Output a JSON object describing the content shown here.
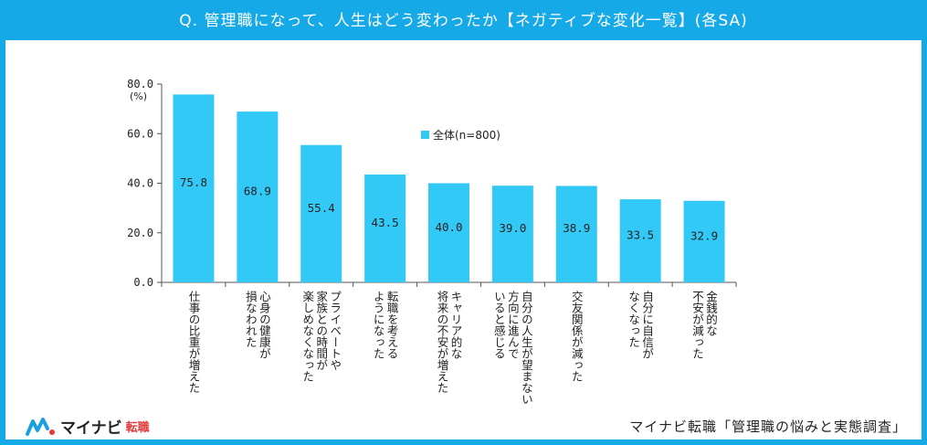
{
  "header": {
    "title": "Q. 管理職になって、人生はどう変わったか【ネガティブな変化一覧】(各SA)"
  },
  "brand": {
    "name": "マイナビ",
    "sub": "転職"
  },
  "source": "マイナビ転職「管理職の悩みと実態調査」",
  "colors": {
    "bar": "#33c9f7",
    "header": "#16a9e8",
    "axis": "#555555"
  },
  "chart_data": {
    "type": "bar",
    "unit_label": "(%)",
    "ylim": [
      0,
      80
    ],
    "yticks": [
      "0.0",
      "20.0",
      "40.0",
      "60.0",
      "80.0"
    ],
    "legend": {
      "label": "全体(n=800)",
      "placement": "top-center"
    },
    "categories": [
      "仕事の比重が増えた",
      "心身の健康が\n損なわれた",
      "プライベートや\n家族との時間が\n楽しめなくなった",
      "転職を考える\nようになった",
      "キャリア的な\n将来の不安が増えた",
      "自分の人生が望まない\n方向に進んで\nいると感じる",
      "交友関係が減った",
      "自分に自信が\nなくなった",
      "金銭的な\n不安が減った"
    ],
    "series": [
      {
        "name": "全体(n=800)",
        "values": [
          75.8,
          68.9,
          55.4,
          43.5,
          40.0,
          39.0,
          38.9,
          33.5,
          32.9
        ]
      }
    ],
    "value_labels": [
      "75.8",
      "68.9",
      "55.4",
      "43.5",
      "40.0",
      "39.0",
      "38.9",
      "33.5",
      "32.9"
    ]
  }
}
